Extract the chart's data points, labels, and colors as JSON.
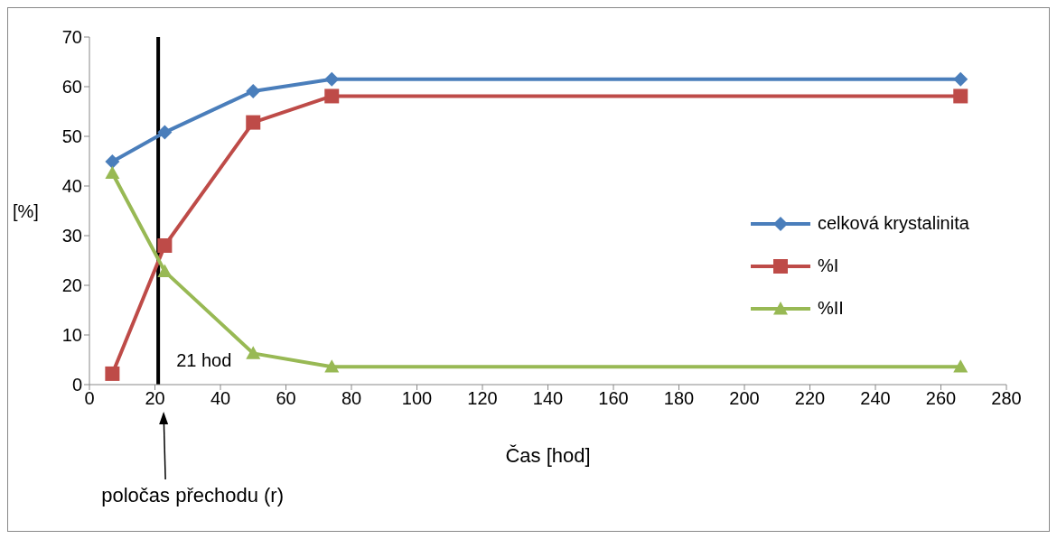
{
  "chart_data": {
    "type": "line",
    "xlabel": "Čas [hod]",
    "ylabel": "[%]",
    "x": [
      7,
      23,
      50,
      74,
      266
    ],
    "series": [
      {
        "name": "celková krystalinita",
        "color": "#4a7ebb",
        "marker": "diamond",
        "values": [
          44.9,
          50.8,
          59.1,
          61.5,
          61.5
        ]
      },
      {
        "name": "%I",
        "color": "#be4b48",
        "marker": "square",
        "values": [
          2.2,
          28.0,
          52.8,
          58.1,
          58.1
        ]
      },
      {
        "name": "%II",
        "color": "#98b954",
        "marker": "triangle",
        "values": [
          42.6,
          22.8,
          6.3,
          3.6,
          3.6
        ]
      }
    ],
    "xlim": [
      0,
      280
    ],
    "xticks": [
      0,
      20,
      40,
      60,
      80,
      100,
      120,
      140,
      160,
      180,
      200,
      220,
      240,
      260,
      280
    ],
    "ylim": [
      0,
      70
    ],
    "yticks": [
      0,
      10,
      20,
      30,
      40,
      50,
      60,
      70
    ],
    "grid": false,
    "legend": "right",
    "line_style": "solid",
    "ref_lines": [
      {
        "axis": "x",
        "value": 21,
        "label": "21 hod",
        "color": "#000000"
      }
    ],
    "annotations": [
      "poločas přechodu (r)"
    ]
  }
}
